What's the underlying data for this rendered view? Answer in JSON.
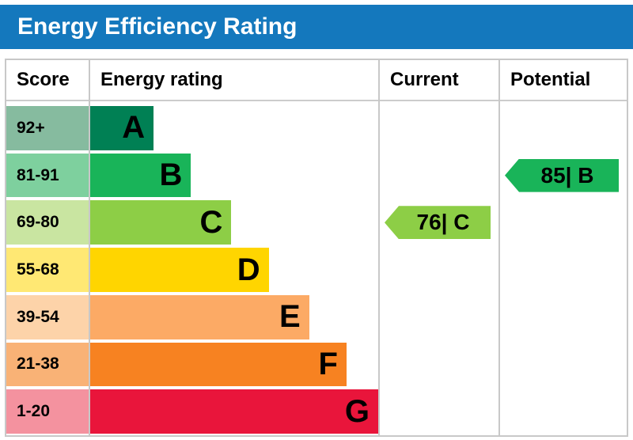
{
  "header": {
    "title": "Energy Efficiency Rating",
    "bg_color": "#1478bd",
    "text_color": "#ffffff"
  },
  "columns": {
    "score": "Score",
    "rating": "Energy rating",
    "current": "Current",
    "potential": "Potential"
  },
  "bands": [
    {
      "score": "92+",
      "letter": "A",
      "color": "#008054",
      "tint": "#86bb9f",
      "width": "22%"
    },
    {
      "score": "81-91",
      "letter": "B",
      "color": "#19b459",
      "tint": "#7ed09e",
      "width": "35%"
    },
    {
      "score": "69-80",
      "letter": "C",
      "color": "#8dce46",
      "tint": "#c9e5a1",
      "width": "49%"
    },
    {
      "score": "55-68",
      "letter": "D",
      "color": "#ffd500",
      "tint": "#ffe873",
      "width": "62%"
    },
    {
      "score": "39-54",
      "letter": "E",
      "color": "#fcaa65",
      "tint": "#fdd3a9",
      "width": "76%"
    },
    {
      "score": "21-38",
      "letter": "F",
      "color": "#f78221",
      "tint": "#f9b276",
      "width": "89%"
    },
    {
      "score": "1-20",
      "letter": "G",
      "color": "#e9153b",
      "tint": "#f4929f",
      "width": "100%"
    }
  ],
  "indicators": {
    "current": {
      "label": "76| C",
      "value": 76,
      "band": "C",
      "color": "#8dce46"
    },
    "potential": {
      "label": "85| B",
      "value": 85,
      "band": "B",
      "color": "#19b459"
    }
  },
  "chart_data": {
    "type": "bar",
    "title": "Energy Efficiency Rating",
    "categories": [
      "A",
      "B",
      "C",
      "D",
      "E",
      "F",
      "G"
    ],
    "score_ranges": [
      "92+",
      "81-91",
      "69-80",
      "55-68",
      "39-54",
      "21-38",
      "1-20"
    ],
    "bar_lengths_pct": [
      22,
      35,
      49,
      62,
      76,
      89,
      100
    ],
    "band_colors": [
      "#008054",
      "#19b459",
      "#8dce46",
      "#ffd500",
      "#fcaa65",
      "#f78221",
      "#e9153b"
    ],
    "columns": [
      "Score",
      "Energy rating",
      "Current",
      "Potential"
    ],
    "current": {
      "value": 76,
      "band": "C"
    },
    "potential": {
      "value": 85,
      "band": "B"
    },
    "legend_position": "none",
    "grid": false
  }
}
